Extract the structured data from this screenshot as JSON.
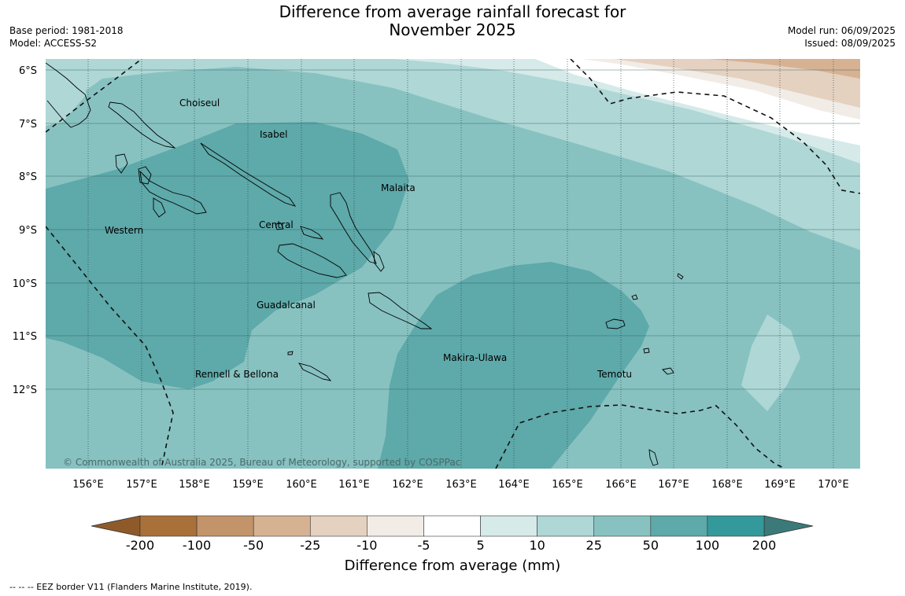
{
  "title_line1": "Difference from average rainfall forecast for",
  "title_line2": "November 2025",
  "base_period": "Base period: 1981-2018",
  "model": "Model: ACCESS-S2",
  "model_run": "Model run: 06/09/2025",
  "issued": "Issued: 08/09/2025",
  "copyright": "© Commonwealth of Australia 2025, Bureau of Meteorology, supported by COSPPac",
  "lat_labels": [
    "6°S",
    "7°S",
    "8°S",
    "9°S",
    "10°S",
    "11°S",
    "12°S"
  ],
  "lon_labels": [
    "156°E",
    "157°E",
    "158°E",
    "159°E",
    "160°E",
    "161°E",
    "162°E",
    "163°E",
    "164°E",
    "165°E",
    "166°E",
    "167°E",
    "168°E",
    "169°E",
    "170°E"
  ],
  "province_labels": [
    "Choiseul",
    "Isabel",
    "Malaita",
    "Western",
    "Central",
    "Guadalcanal",
    "Makira-Ulawa",
    "Rennell & Bellona",
    "Temotu"
  ],
  "colorbar": {
    "tick_labels": [
      "-200",
      "-100",
      "-50",
      "-25",
      "-10",
      "-5",
      "5",
      "10",
      "25",
      "50",
      "100",
      "200"
    ],
    "colors": [
      "#a9703a",
      "#c39469",
      "#d6b293",
      "#e4d1c0",
      "#f2ece7",
      "#ffffff",
      "#d5eae9",
      "#aed7d6",
      "#87c2c1",
      "#5ea9aa",
      "#34999a"
    ],
    "low_extend_color": "#8f5a2a",
    "high_extend_color": "#3b7a79",
    "label": "Difference from average (mm)"
  },
  "footer": "-- -- -- EEZ border V11 (Flanders Marine Institute, 2019)."
}
